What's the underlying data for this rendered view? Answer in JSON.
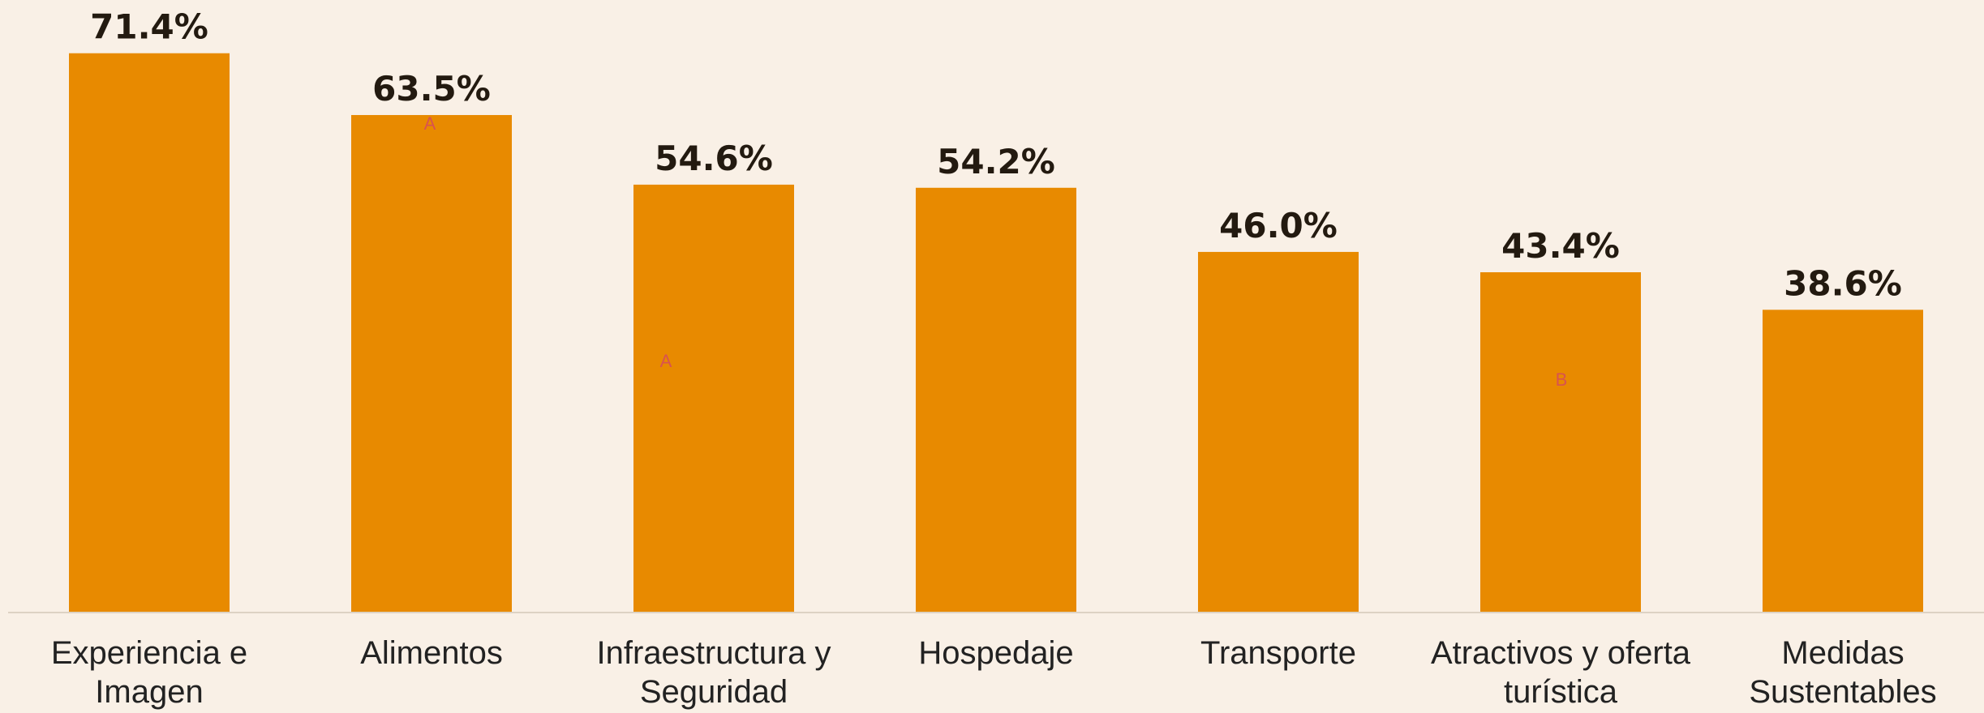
{
  "chart_data": {
    "type": "bar",
    "categories": [
      "Experiencia e Imagen",
      "Alimentos",
      "Infraestructura y Seguridad",
      "Hospedaje",
      "Transporte",
      "Atractivos y oferta turística",
      "Medidas Sustentables"
    ],
    "values": [
      71.4,
      63.5,
      54.6,
      54.2,
      46.0,
      43.4,
      38.6
    ],
    "value_labels": [
      "71.4%",
      "63.5%",
      "54.6%",
      "54.2%",
      "46.0%",
      "43.4%",
      "38.6%"
    ],
    "color": "#e88a00",
    "ylim": [
      0,
      78
    ],
    "annotations": [
      "A",
      "A",
      "B"
    ]
  }
}
